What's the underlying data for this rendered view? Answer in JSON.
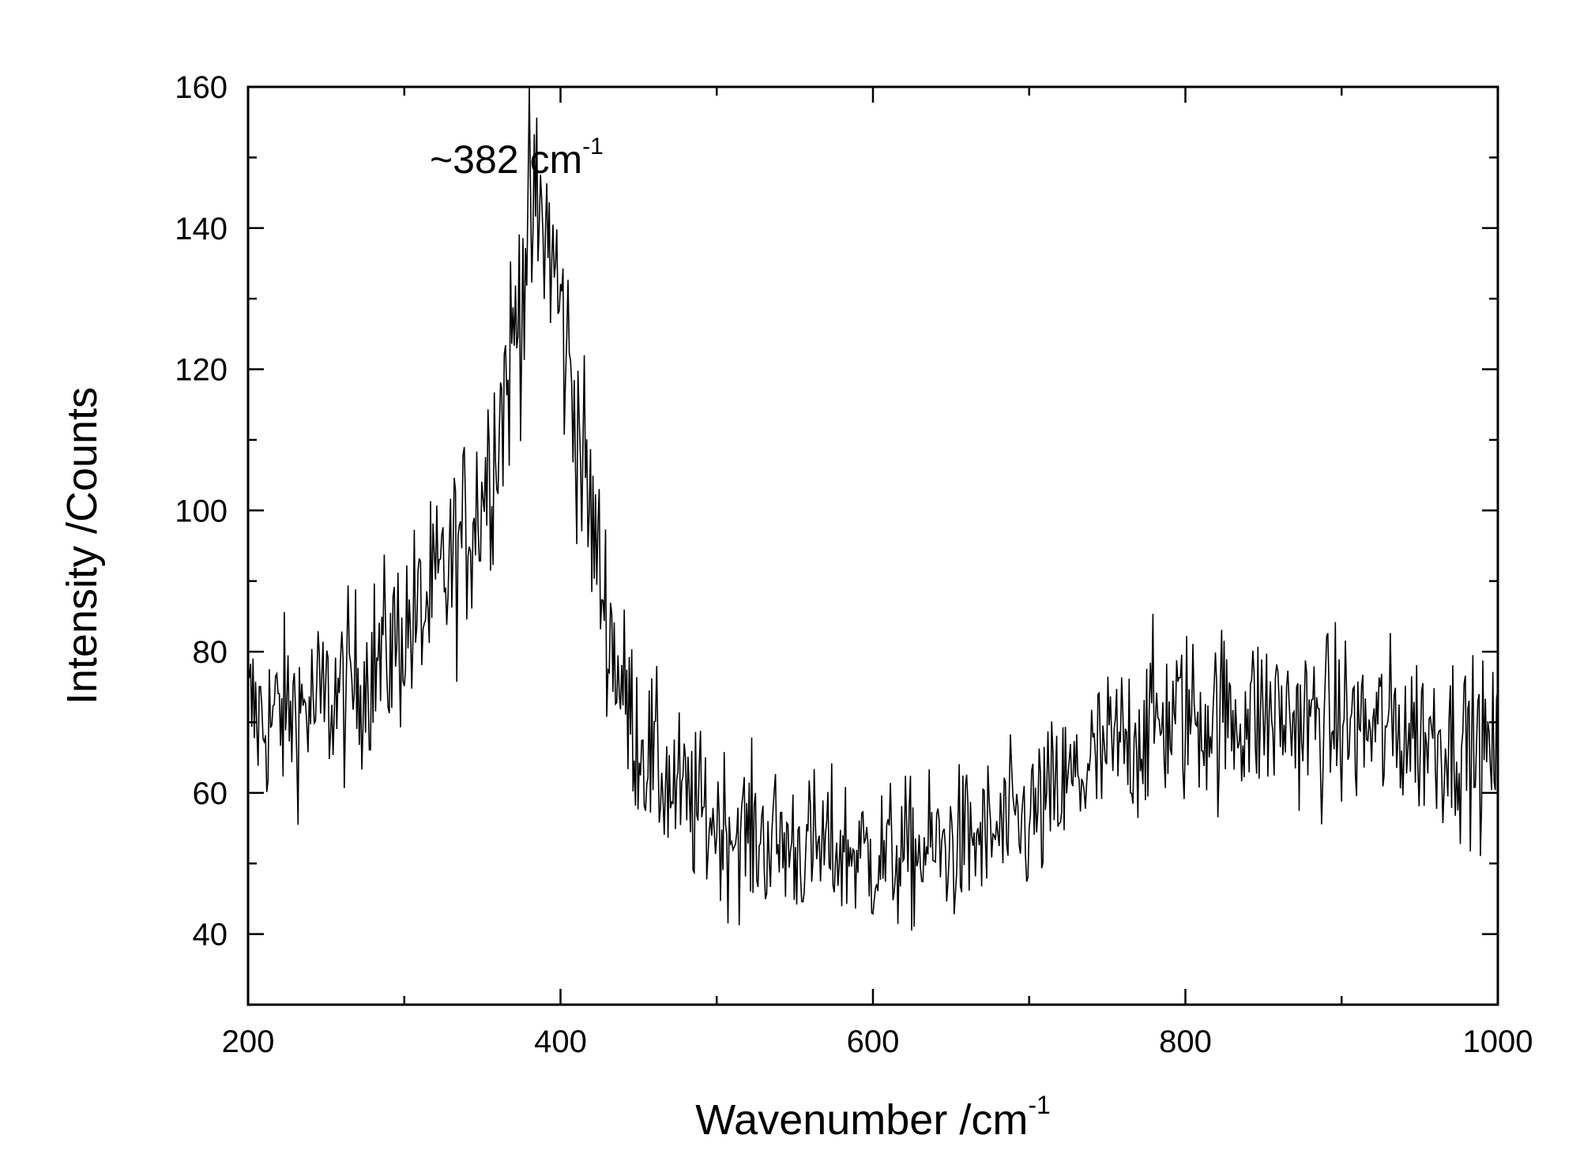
{
  "chart_data": {
    "type": "line",
    "title": "",
    "xlabel": "Wavenumber /cm",
    "xlabel_sup": "-1",
    "ylabel": "Intensity /Counts",
    "xlim": [
      200,
      1000
    ],
    "ylim": [
      30,
      160
    ],
    "xticks": [
      200,
      400,
      600,
      800,
      1000
    ],
    "yticks": [
      40,
      60,
      80,
      100,
      120,
      140,
      160
    ],
    "grid": false,
    "legend": "none",
    "line_color": "#000000",
    "annotations": [
      {
        "text": "~382 cm",
        "sup": "-1",
        "x": 382,
        "y": 146
      }
    ],
    "series": [
      {
        "x": [
          200,
          210,
          220,
          230,
          240,
          250,
          260,
          270,
          280,
          290,
          300,
          310,
          320,
          330,
          340,
          350,
          360,
          370,
          375,
          380,
          385,
          390,
          395,
          400,
          410,
          420,
          430,
          440,
          450,
          460,
          470,
          480,
          490,
          500,
          520,
          540,
          560,
          580,
          600,
          620,
          640,
          660,
          680,
          700,
          720,
          740,
          760,
          780,
          800,
          820,
          840,
          860,
          880,
          900,
          920,
          940,
          960,
          980,
          1000
        ],
        "y": [
          72,
          70,
          71,
          72,
          72,
          73,
          74,
          76,
          78,
          80,
          83,
          85,
          88,
          92,
          97,
          103,
          112,
          124,
          133,
          140,
          141,
          140,
          136,
          128,
          114,
          98,
          85,
          74,
          68,
          64,
          61,
          59,
          57,
          56,
          54,
          53,
          52,
          52,
          51,
          51,
          52,
          53,
          54,
          56,
          60,
          64,
          67,
          70,
          71,
          71,
          71,
          71,
          70,
          70,
          69,
          69,
          68,
          67,
          65
        ]
      }
    ]
  }
}
